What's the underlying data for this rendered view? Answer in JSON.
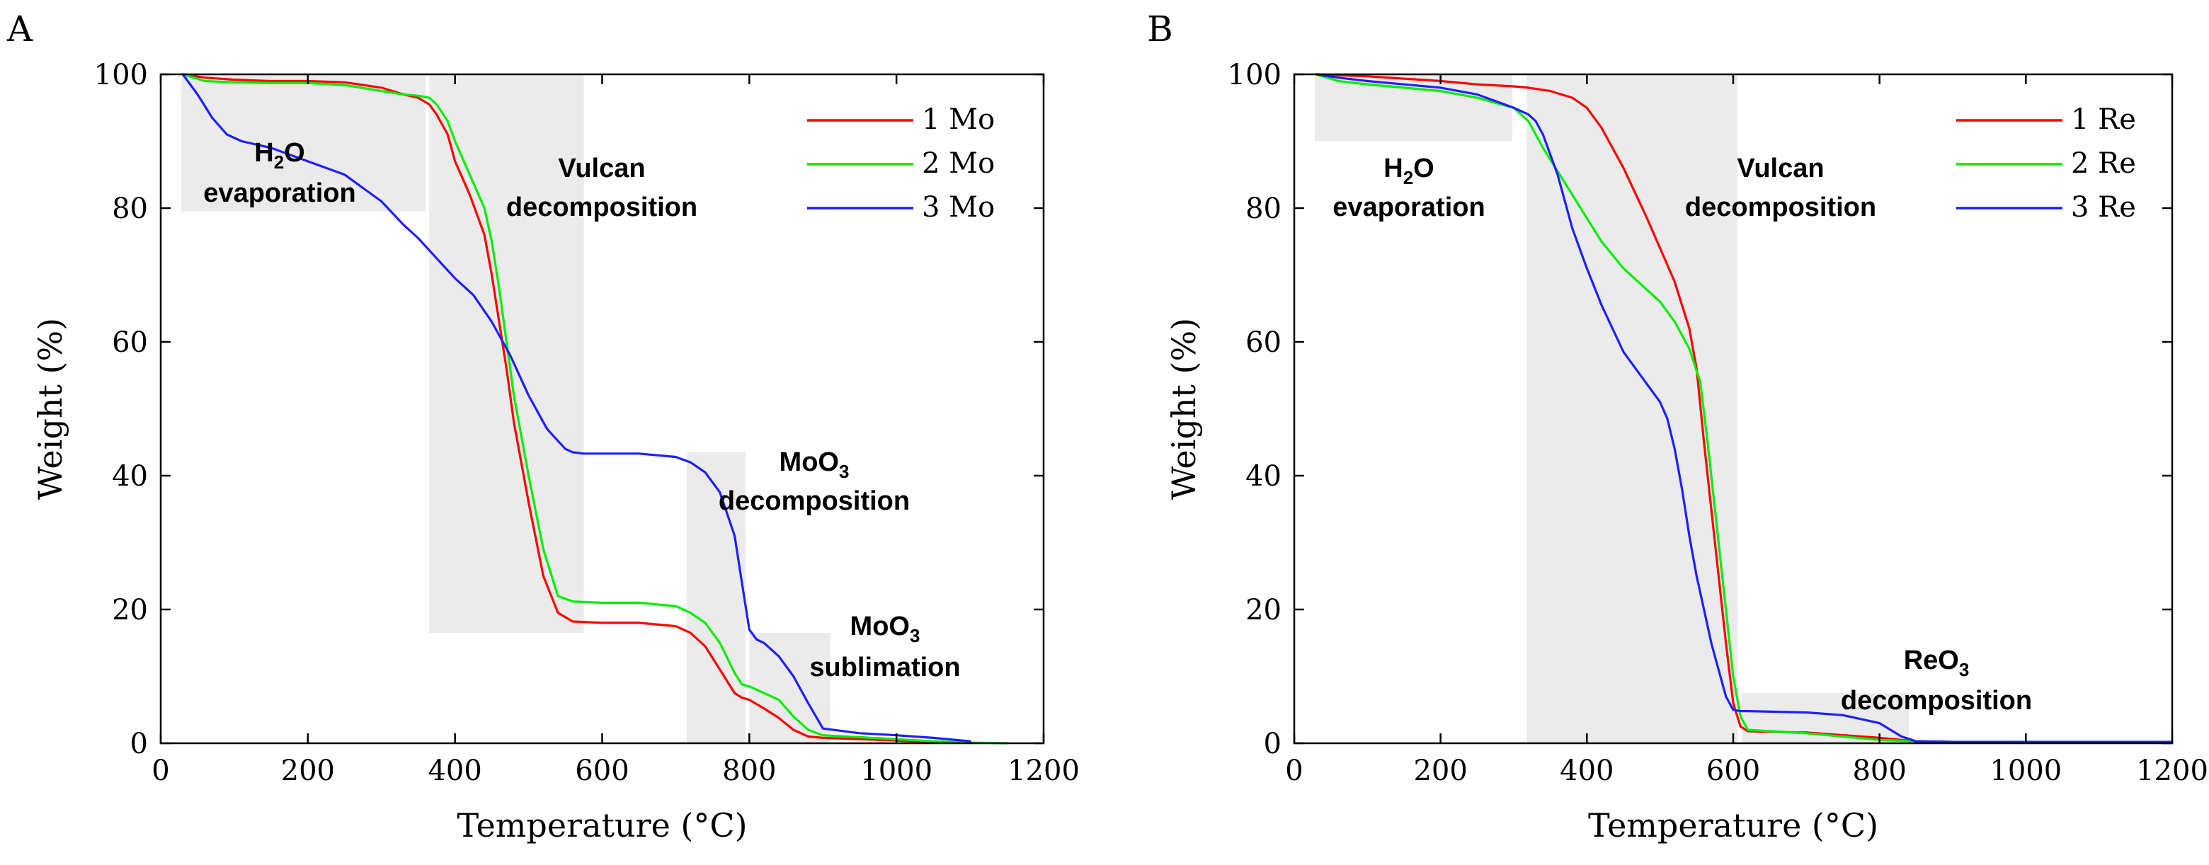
{
  "chart_data": [
    {
      "panel": "A",
      "type": "line",
      "xlabel": "Temperature (°C)",
      "ylabel": "Weight (%)",
      "xlim": [
        0,
        1200
      ],
      "ylim": [
        0,
        100
      ],
      "xticks": [
        0,
        200,
        400,
        600,
        800,
        1000,
        1200
      ],
      "yticks": [
        0,
        20,
        40,
        60,
        80,
        100
      ],
      "legend_position": "top-right",
      "series": [
        {
          "name": "1 Mo",
          "color": "#ff0000",
          "x": [
            30,
            60,
            100,
            150,
            200,
            250,
            300,
            330,
            350,
            365,
            375,
            390,
            400,
            420,
            440,
            450,
            460,
            470,
            480,
            500,
            520,
            540,
            560,
            600,
            650,
            700,
            720,
            740,
            760,
            780,
            790,
            800,
            820,
            840,
            860,
            880,
            900,
            950,
            1000,
            1050,
            1100
          ],
          "y": [
            100,
            99.5,
            99.2,
            99,
            99,
            98.8,
            98,
            97,
            96.5,
            95.5,
            94,
            91,
            87,
            82,
            76,
            70,
            63,
            56,
            48,
            36,
            25,
            19.5,
            18.2,
            18,
            18,
            17.5,
            16.5,
            14.5,
            11,
            7.5,
            6.8,
            6.5,
            5.2,
            3.8,
            2,
            1,
            0.8,
            0.6,
            0.4,
            0.2,
            0.1
          ]
        },
        {
          "name": "2 Mo",
          "color": "#00ee00",
          "x": [
            30,
            60,
            100,
            150,
            200,
            250,
            300,
            330,
            350,
            365,
            375,
            390,
            400,
            420,
            440,
            450,
            460,
            470,
            480,
            500,
            520,
            540,
            560,
            600,
            650,
            700,
            720,
            740,
            760,
            780,
            790,
            800,
            820,
            840,
            860,
            880,
            900,
            950,
            1000,
            1050,
            1100,
            1150
          ],
          "y": [
            100,
            99,
            98.8,
            98.7,
            98.7,
            98.4,
            97.5,
            97,
            96.8,
            96.5,
            95.5,
            93,
            90,
            85,
            80,
            75,
            68,
            60,
            52,
            40,
            29,
            22,
            21.2,
            21,
            21,
            20.5,
            19.5,
            18,
            15,
            10.5,
            8.8,
            8.5,
            7.5,
            6.5,
            4,
            2,
            1.2,
            0.9,
            0.6,
            0.3,
            0.1,
            0
          ]
        },
        {
          "name": "3 Mo",
          "color": "#1f1fff",
          "x": [
            30,
            50,
            70,
            90,
            110,
            150,
            200,
            250,
            300,
            330,
            350,
            375,
            400,
            425,
            450,
            475,
            500,
            525,
            550,
            560,
            575,
            600,
            650,
            700,
            720,
            740,
            760,
            780,
            790,
            800,
            810,
            820,
            840,
            860,
            880,
            900,
            950,
            1000,
            1050,
            1100
          ],
          "y": [
            100,
            97,
            93.5,
            91,
            90,
            89,
            87,
            85,
            81,
            77.5,
            75.5,
            72.5,
            69.5,
            67,
            63,
            58,
            52,
            47,
            44,
            43.5,
            43.3,
            43.3,
            43.3,
            42.8,
            42,
            40.5,
            37.5,
            31,
            24,
            17,
            15.5,
            15,
            13,
            10,
            6,
            2.2,
            1.5,
            1.2,
            0.8,
            0.3
          ]
        }
      ],
      "annotations": [
        {
          "main": "H",
          "sub": "2",
          "tail": "O",
          "line2": "evaporation"
        },
        {
          "main": "Vulcan",
          "line2": "decomposition"
        },
        {
          "main": "MoO",
          "sub": "3",
          "tail": "",
          "line2": "decomposition"
        },
        {
          "main": "MoO",
          "sub": "3",
          "tail": "",
          "line2": "sublimation"
        }
      ],
      "shaded_regions": [
        {
          "x": [
            28,
            360
          ],
          "y": [
            79.5,
            100
          ]
        },
        {
          "x": [
            365,
            575
          ],
          "y": [
            16.5,
            100
          ]
        },
        {
          "x": [
            715,
            795
          ],
          "y": [
            0,
            43.5
          ]
        },
        {
          "x": [
            800,
            910
          ],
          "y": [
            0,
            16.5
          ]
        }
      ]
    },
    {
      "panel": "B",
      "type": "line",
      "xlabel": "Temperature (°C)",
      "ylabel": "Weight (%)",
      "xlim": [
        0,
        1200
      ],
      "ylim": [
        0,
        100
      ],
      "xticks": [
        0,
        200,
        400,
        600,
        800,
        1000,
        1200
      ],
      "yticks": [
        0,
        20,
        40,
        60,
        80,
        100
      ],
      "legend_position": "top-right",
      "series": [
        {
          "name": "1 Re",
          "color": "#ff0000",
          "x": [
            30,
            100,
            200,
            250,
            300,
            320,
            350,
            380,
            400,
            420,
            450,
            480,
            500,
            520,
            540,
            550,
            560,
            575,
            590,
            600,
            610,
            620,
            700,
            800,
            850,
            900,
            1000,
            1100,
            1200
          ],
          "y": [
            100,
            99.7,
            99,
            98.5,
            98.2,
            98,
            97.5,
            96.5,
            95,
            92,
            86,
            79,
            74,
            69,
            62,
            56,
            45,
            30,
            15,
            6,
            2.5,
            1.8,
            1.6,
            0.8,
            0.3,
            0.2,
            0.2,
            0.2,
            0.2
          ]
        },
        {
          "name": "2 Re",
          "color": "#00ee00",
          "x": [
            30,
            60,
            100,
            150,
            200,
            250,
            300,
            320,
            340,
            360,
            380,
            400,
            420,
            450,
            480,
            500,
            520,
            540,
            555,
            565,
            575,
            590,
            600,
            610,
            620,
            700,
            800,
            850,
            900,
            1000,
            1200
          ],
          "y": [
            100,
            99,
            98.5,
            98,
            97.5,
            96.5,
            95,
            93,
            89,
            85.5,
            82,
            78.5,
            75,
            71,
            68,
            66,
            63,
            59,
            54,
            45,
            35,
            20,
            10,
            4,
            2,
            1.5,
            0.5,
            0.3,
            0.2,
            0.2,
            0.2
          ]
        },
        {
          "name": "3 Re",
          "color": "#1f1fff",
          "x": [
            30,
            60,
            100,
            150,
            200,
            250,
            300,
            310,
            320,
            330,
            340,
            360,
            380,
            400,
            420,
            450,
            480,
            500,
            510,
            520,
            530,
            540,
            550,
            560,
            570,
            580,
            590,
            600,
            610,
            620,
            700,
            750,
            800,
            830,
            850,
            900,
            1000,
            1200
          ],
          "y": [
            100,
            99.5,
            99,
            98.5,
            98,
            97,
            95,
            94.5,
            94,
            93,
            91,
            85,
            77,
            71,
            65.5,
            58.5,
            54,
            51,
            48.5,
            44,
            38,
            31,
            25,
            20,
            15,
            11,
            7,
            5,
            4.8,
            4.8,
            4.6,
            4.2,
            3,
            1,
            0.3,
            0.2,
            0.2,
            0.2
          ]
        }
      ],
      "annotations": [
        {
          "main": "H",
          "sub": "2",
          "tail": "O",
          "line2": "evaporation"
        },
        {
          "main": "Vulcan",
          "line2": "decomposition"
        },
        {
          "main": "ReO",
          "sub": "3",
          "tail": "",
          "line2": "decomposition"
        }
      ],
      "shaded_regions": [
        {
          "x": [
            28,
            298
          ],
          "y": [
            90,
            100
          ]
        },
        {
          "x": [
            318,
            606
          ],
          "y": [
            0,
            100
          ]
        },
        {
          "x": [
            612,
            840
          ],
          "y": [
            0,
            7.5
          ]
        }
      ]
    }
  ]
}
